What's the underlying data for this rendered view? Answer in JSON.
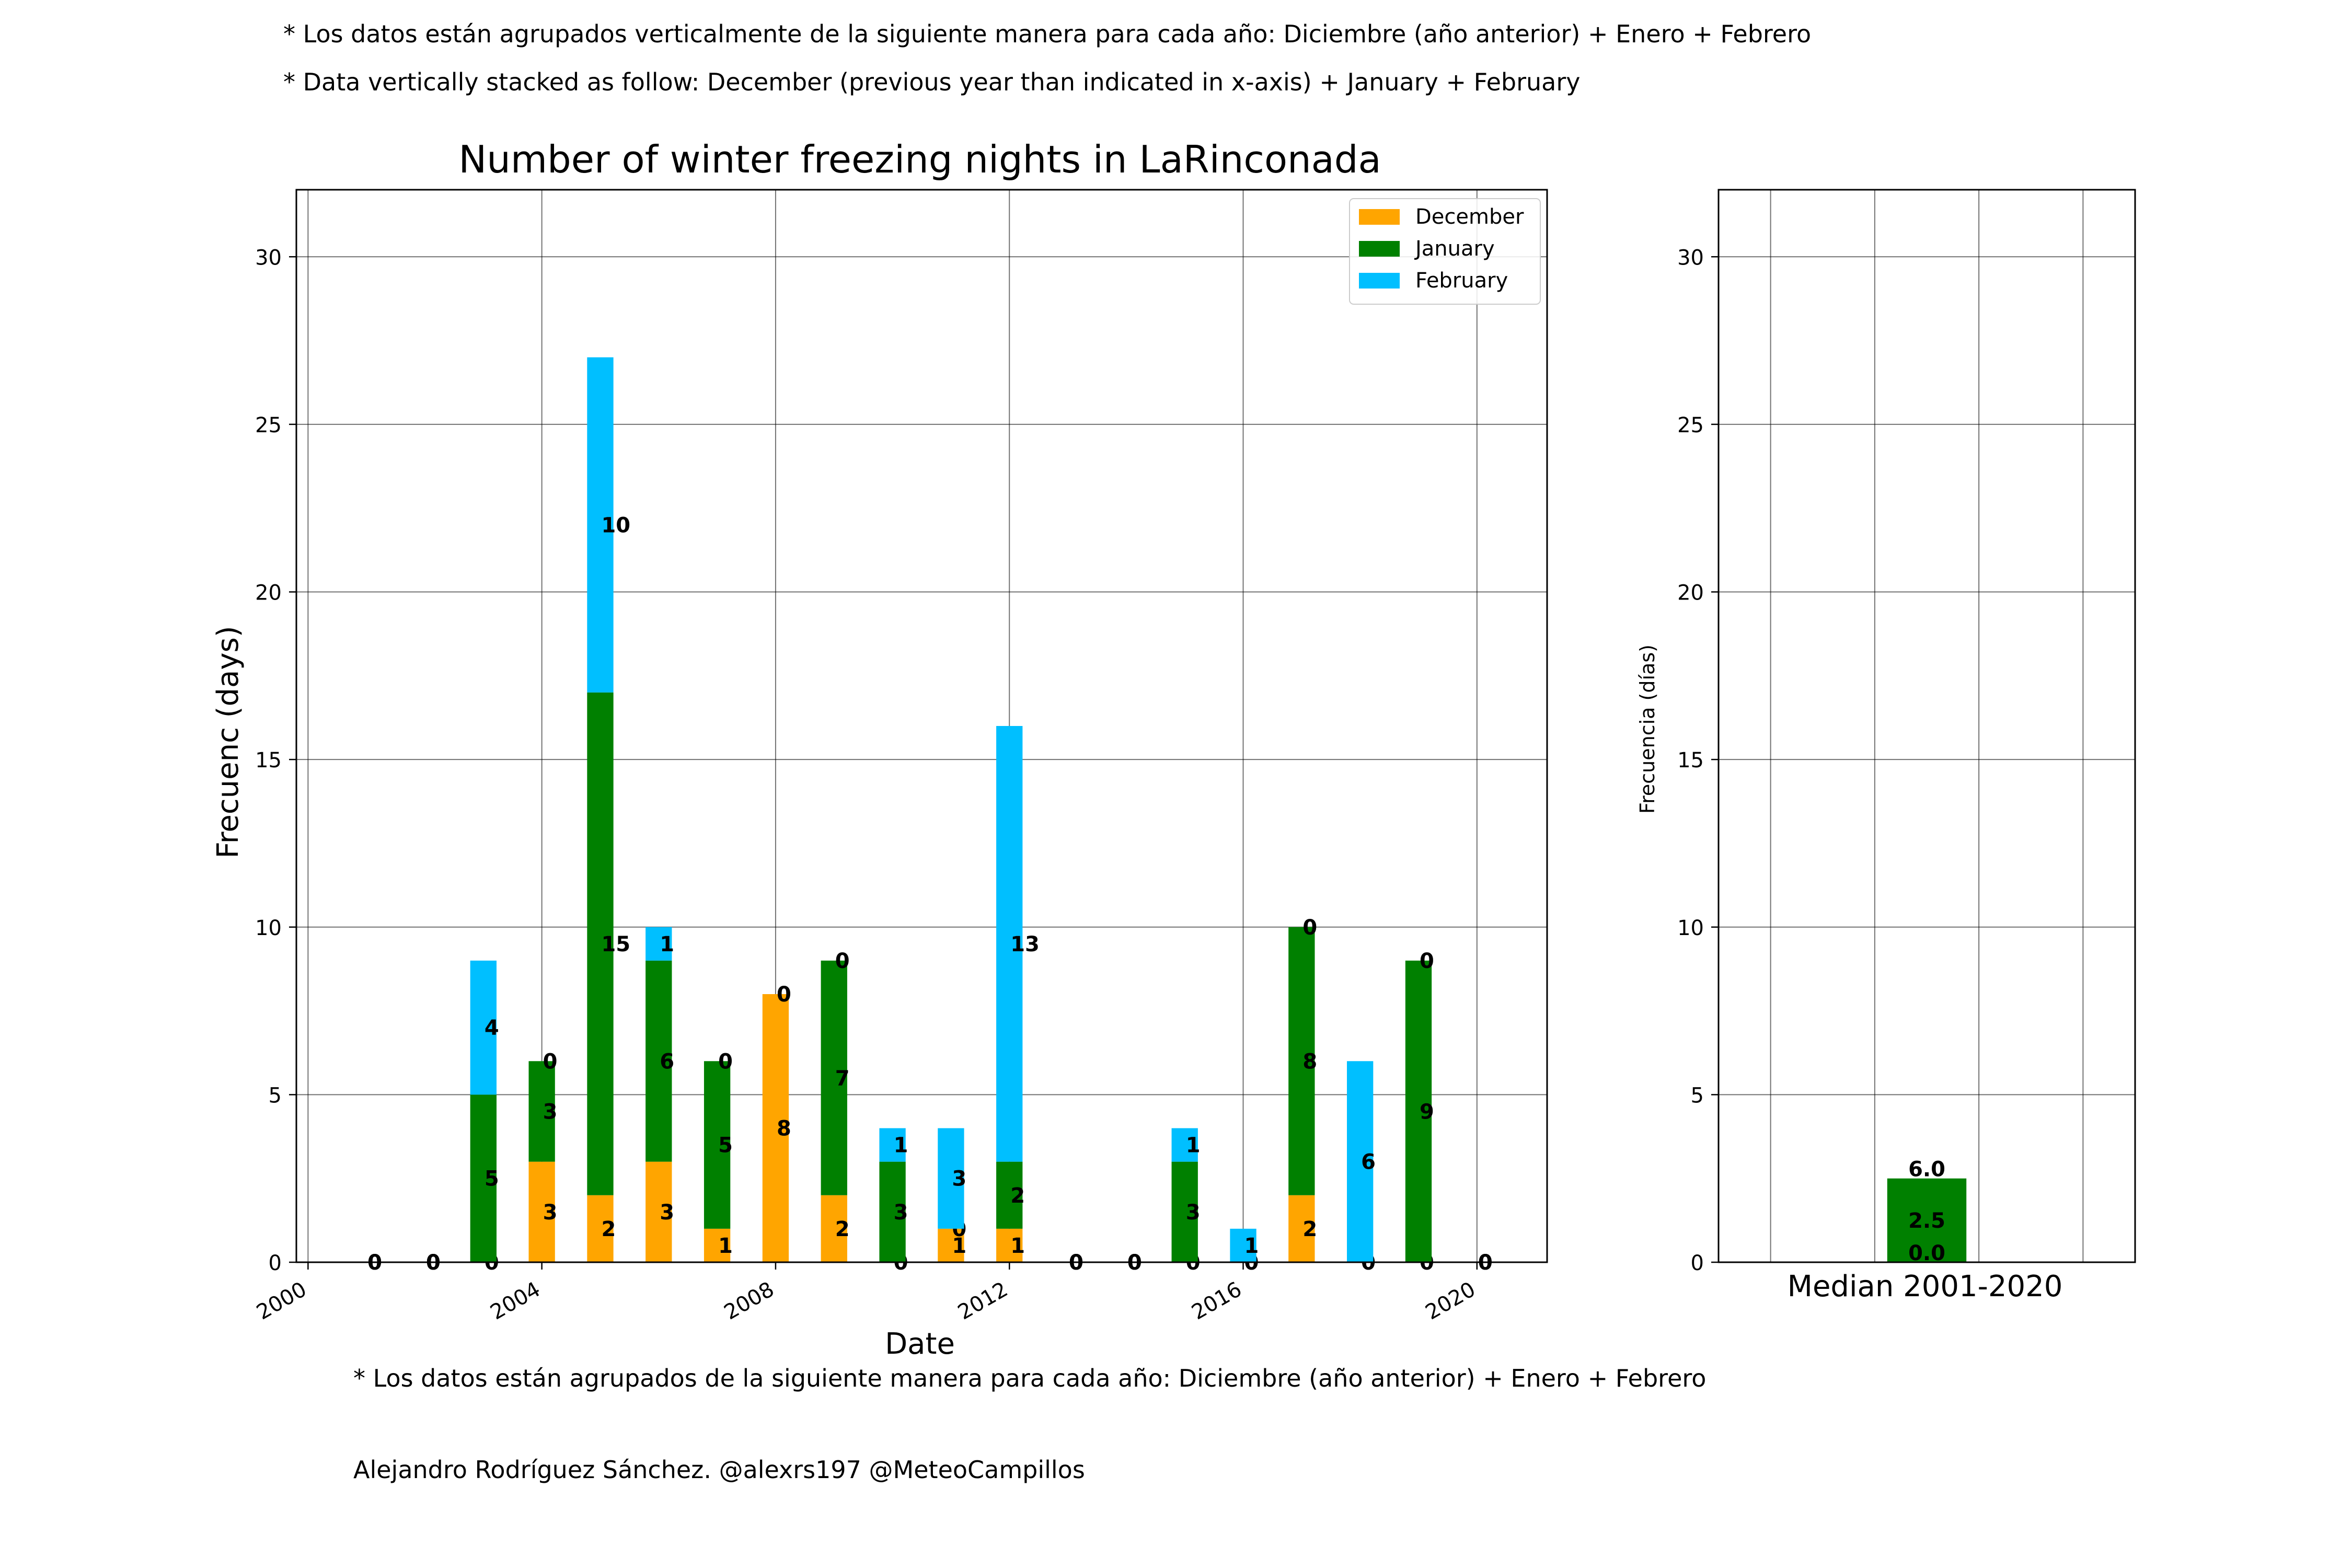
{
  "notes": {
    "top_es": "* Los datos están agrupados verticalmente de la siguiente manera para cada año: Diciembre (año anterior) + Enero  + Febrero",
    "top_en": "* Data vertically stacked as follow: December (previous year than indicated in x-axis) + January  + February",
    "bottom_es": "* Los datos están agrupados de la siguiente manera para cada año: Diciembre (año anterior) + Enero  + Febrero",
    "credit": "Alejandro Rodríguez Sánchez. @alexrs197 @MeteoCampillos"
  },
  "colors": {
    "December": "#ffa500",
    "January": "#008000",
    "February": "#00bfff"
  },
  "chart_data": [
    {
      "type": "bar",
      "stacked": true,
      "title": "Number of winter freezing nights in LaRinconada",
      "xlabel": "Date",
      "ylabel": "Frecuenc (days)",
      "ylim": [
        0,
        32
      ],
      "yticks": [
        0,
        5,
        10,
        15,
        20,
        25,
        30
      ],
      "xlim": [
        1999.8,
        2021.2
      ],
      "xticks": [
        "2000",
        "2004",
        "2008",
        "2012",
        "2016",
        "2020"
      ],
      "grid": true,
      "legend_position": "top-right",
      "x": [
        2001,
        2002,
        2003,
        2004,
        2005,
        2006,
        2007,
        2008,
        2009,
        2010,
        2011,
        2012,
        2013,
        2014,
        2015,
        2016,
        2017,
        2018,
        2019,
        2020
      ],
      "series": [
        {
          "name": "December",
          "values": [
            0,
            0,
            0,
            3,
            2,
            3,
            1,
            8,
            2,
            0,
            1,
            1,
            0,
            0,
            0,
            0,
            2,
            0,
            0,
            0
          ]
        },
        {
          "name": "January",
          "values": [
            0,
            0,
            5,
            3,
            15,
            6,
            5,
            0,
            7,
            3,
            0,
            2,
            0,
            0,
            3,
            0,
            8,
            0,
            9,
            0
          ]
        },
        {
          "name": "February",
          "values": [
            0,
            0,
            4,
            0,
            10,
            1,
            0,
            0,
            0,
            1,
            3,
            13,
            0,
            0,
            1,
            1,
            0,
            6,
            0,
            0
          ]
        }
      ]
    },
    {
      "type": "bar",
      "stacked": true,
      "title": "",
      "xlabel": "Median 2001-2020",
      "ylabel": "Frecuencia (días)",
      "ylim": [
        0,
        32
      ],
      "yticks": [
        0,
        5,
        10,
        15,
        20,
        25,
        30
      ],
      "grid": true,
      "series": [
        {
          "name": "December",
          "values": [
            0.0
          ]
        },
        {
          "name": "January",
          "values": [
            2.5
          ]
        },
        {
          "name": "February",
          "values": [
            0.0
          ]
        }
      ],
      "data_labels": [
        "6.0",
        "2.5",
        "0.0"
      ]
    }
  ]
}
